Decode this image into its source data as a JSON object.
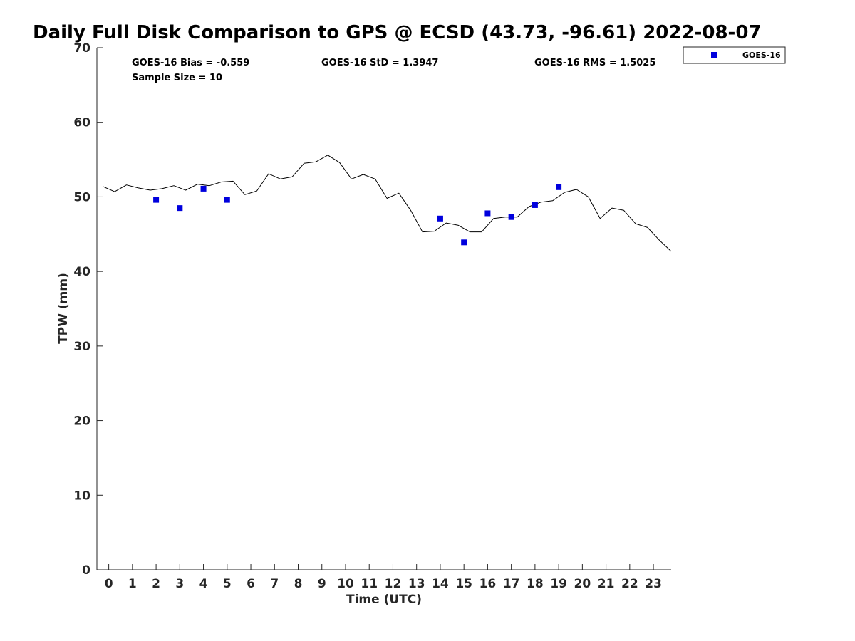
{
  "chart_data": {
    "type": "line",
    "title": "Daily Full Disk Comparison to GPS @ ECSD (43.73, -96.61) 2022-08-07",
    "xlabel": "Time (UTC)",
    "ylabel": "TPW (mm)",
    "xlim": [
      -0.5,
      23.75
    ],
    "ylim": [
      0,
      70
    ],
    "x_ticks": [
      0,
      1,
      2,
      3,
      4,
      5,
      6,
      7,
      8,
      9,
      10,
      11,
      12,
      13,
      14,
      15,
      16,
      17,
      18,
      19,
      20,
      21,
      22,
      23
    ],
    "y_ticks": [
      0,
      10,
      20,
      30,
      40,
      50,
      60,
      70
    ],
    "grid": false,
    "stats": {
      "bias": "GOES-16 Bias = -0.559",
      "std": "GOES-16 StD = 1.3947",
      "rms": "GOES-16 RMS = 1.5025",
      "sample": "Sample Size = 10"
    },
    "legend": {
      "position": "top-right-outside",
      "entries": [
        "GOES-16"
      ]
    },
    "series": [
      {
        "type": "line",
        "color": "#000000",
        "x": [
          -0.25,
          0.25,
          0.75,
          1.25,
          1.75,
          2.25,
          2.75,
          3.25,
          3.75,
          4.25,
          4.75,
          5.25,
          5.75,
          6.25,
          6.75,
          7.25,
          7.75,
          8.25,
          8.75,
          9.25,
          9.75,
          10.25,
          10.75,
          11.25,
          11.75,
          12.25,
          12.75,
          13.25,
          13.75,
          14.25,
          14.75,
          15.25,
          15.75,
          16.25,
          16.75,
          17.25,
          17.75,
          18.25,
          18.75,
          19.25,
          19.75,
          20.25,
          20.75,
          21.25,
          21.75,
          22.25,
          22.75,
          23.25,
          23.75
        ],
        "values": [
          51.4,
          50.7,
          51.6,
          51.2,
          50.9,
          51.1,
          51.5,
          50.9,
          51.7,
          51.5,
          52.0,
          52.1,
          50.3,
          50.8,
          53.1,
          52.4,
          52.7,
          54.5,
          54.7,
          55.6,
          54.6,
          52.4,
          53.0,
          52.4,
          49.8,
          50.5,
          48.2,
          45.3,
          45.4,
          46.5,
          46.2,
          45.3,
          45.3,
          47.1,
          47.3,
          47.3,
          48.7,
          49.3,
          49.5,
          50.6,
          51.0,
          50.0,
          47.1,
          48.5,
          48.2,
          46.4,
          45.9,
          44.2,
          42.7
        ]
      },
      {
        "name": "GOES-16",
        "type": "scatter",
        "color": "#0000dd",
        "marker": "square",
        "x": [
          2,
          3,
          4,
          5,
          14,
          15,
          16,
          17,
          18,
          19
        ],
        "values": [
          49.6,
          48.5,
          51.1,
          49.6,
          47.1,
          43.9,
          47.8,
          47.3,
          48.9,
          51.3
        ]
      }
    ]
  }
}
